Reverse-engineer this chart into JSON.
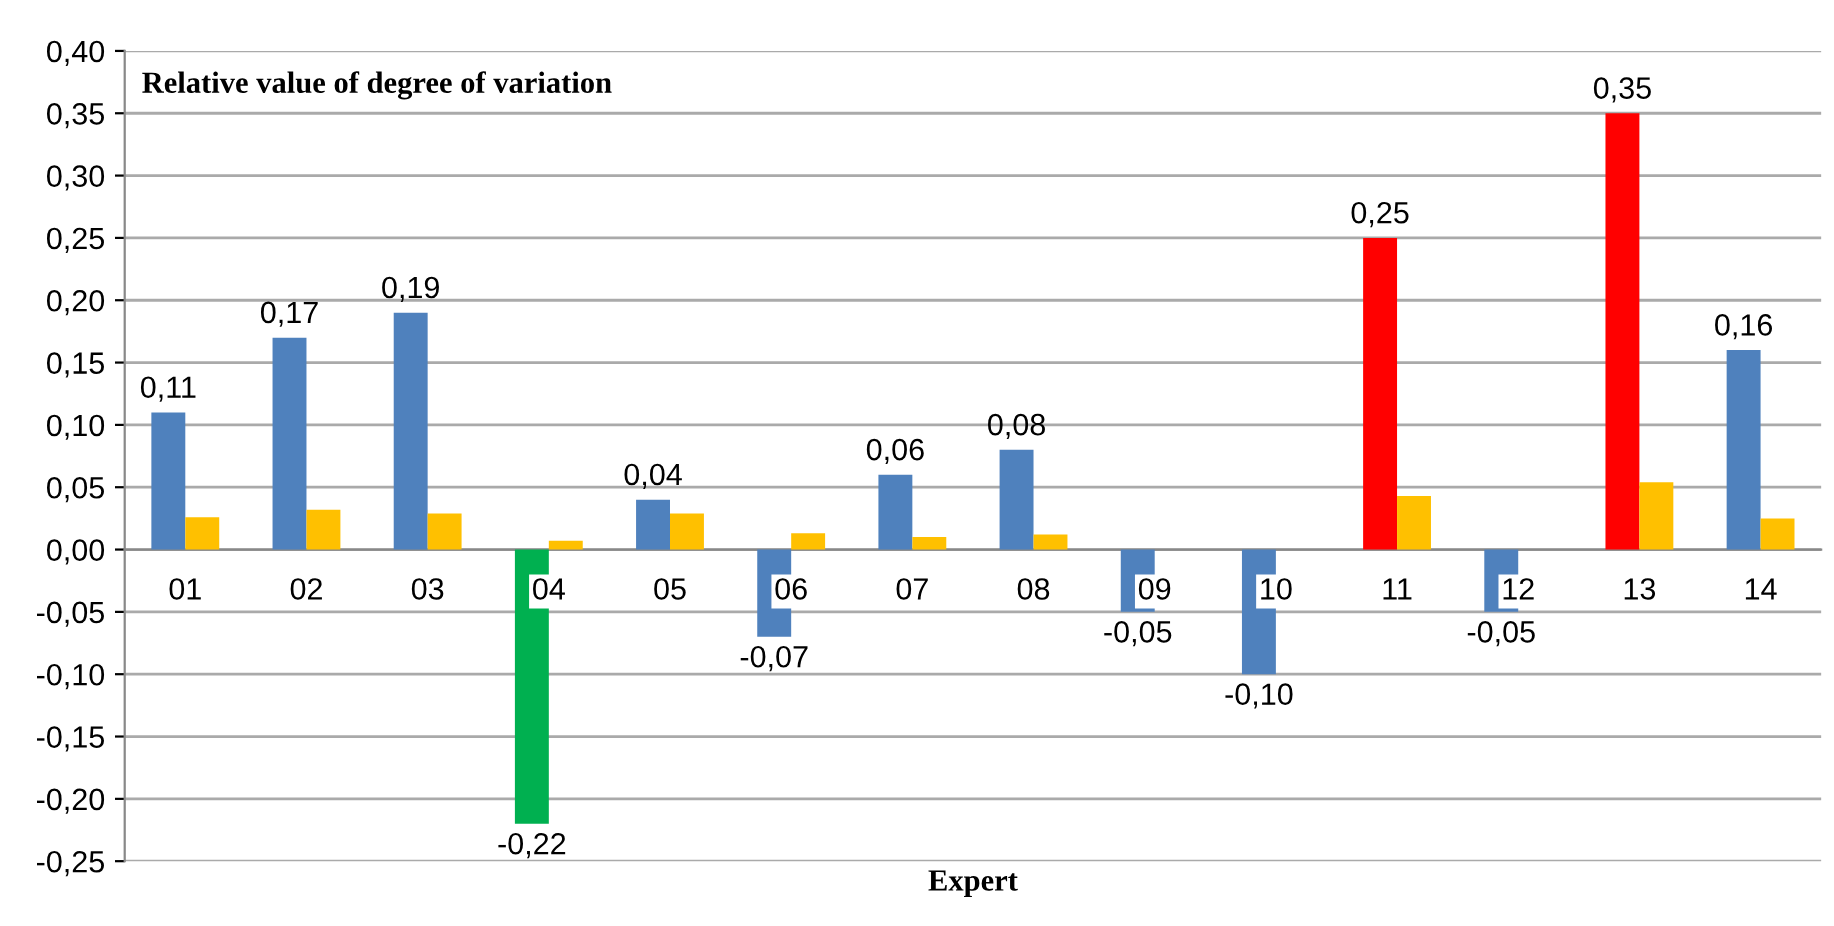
{
  "chart_data": {
    "type": "bar",
    "title": "Relative value of degree of variation",
    "xlabel": "Expert",
    "categories": [
      "01",
      "02",
      "03",
      "04",
      "05",
      "06",
      "07",
      "08",
      "09",
      "10",
      "11",
      "12",
      "13",
      "14"
    ],
    "series": [
      {
        "colors": [
          "#4f81bd",
          "#4f81bd",
          "#4f81bd",
          "#00b050",
          "#4f81bd",
          "#4f81bd",
          "#4f81bd",
          "#4f81bd",
          "#4f81bd",
          "#4f81bd",
          "#ff0000",
          "#4f81bd",
          "#ff0000",
          "#4f81bd"
        ],
        "values": [
          0.11,
          0.17,
          0.19,
          -0.22,
          0.04,
          -0.07,
          0.06,
          0.08,
          -0.05,
          -0.1,
          0.25,
          -0.05,
          0.35,
          0.16
        ],
        "value_labels": [
          "0,11",
          "0,17",
          "0,19",
          "-0,22",
          "0,04",
          "-0,07",
          "0,06",
          "0,08",
          "-0,05",
          "-0,10",
          "0,25",
          "-0,05",
          "0,35",
          "0,16"
        ]
      },
      {
        "color": "#ffc000",
        "values": [
          0.026,
          0.032,
          0.029,
          0.007,
          0.029,
          0.013,
          0.01,
          0.012,
          null,
          null,
          0.043,
          null,
          0.054,
          0.025
        ]
      }
    ],
    "ylim": [
      -0.25,
      0.4
    ],
    "yticks": [
      {
        "value": -0.25,
        "label": "-0,25"
      },
      {
        "value": -0.2,
        "label": "-0,20"
      },
      {
        "value": -0.15,
        "label": "-0,15"
      },
      {
        "value": -0.1,
        "label": "-0,10"
      },
      {
        "value": -0.05,
        "label": "-0,05"
      },
      {
        "value": 0,
        "label": "0,00"
      },
      {
        "value": 0.05,
        "label": "0,05"
      },
      {
        "value": 0.1,
        "label": "0,10"
      },
      {
        "value": 0.15,
        "label": "0,15"
      },
      {
        "value": 0.2,
        "label": "0,20"
      },
      {
        "value": 0.25,
        "label": "0,25"
      },
      {
        "value": 0.3,
        "label": "0,30"
      },
      {
        "value": 0.35,
        "label": "0,35"
      },
      {
        "value": 0.4,
        "label": "0,40"
      }
    ],
    "grid": "y"
  }
}
